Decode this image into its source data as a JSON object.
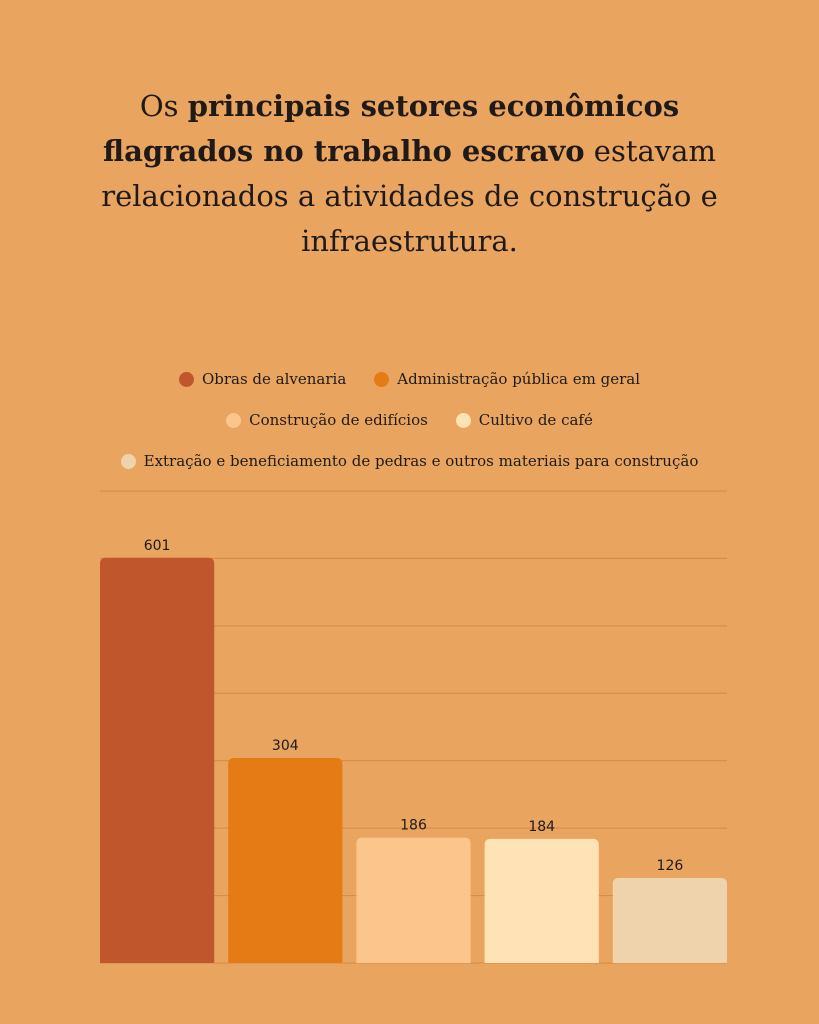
{
  "title": {
    "pre": "Os ",
    "bold": "principais setores econômicos flagrados no trabalho escravo",
    "post": " estavam relacionados a atividades de construção e infraestrutura."
  },
  "chart_data": {
    "type": "bar",
    "categories": [
      "Obras de alvenaria",
      "Administração pública em geral",
      "Construção de edifícios",
      "Cultivo de café",
      "Extração e beneficiamento de pedras e outros materiais para construção"
    ],
    "values": [
      601,
      304,
      186,
      184,
      126
    ],
    "colors": [
      "#C0562B",
      "#E47B15",
      "#FCC58B",
      "#FFE2B5",
      "#EED3AC"
    ],
    "ylim": [
      0,
      700
    ],
    "ygrid_step": 100,
    "grid": true,
    "legend_position": "top",
    "xlabel": "",
    "ylabel": ""
  }
}
